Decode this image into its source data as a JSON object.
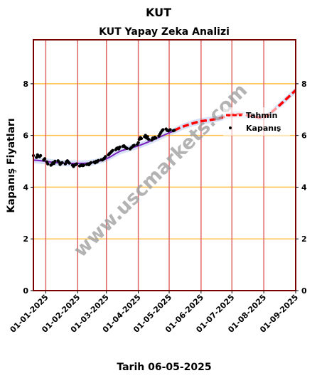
{
  "chart_data": {
    "type": "line",
    "suptitle": "KUT",
    "title": "KUT Yapay Zeka Analizi",
    "xlabel": "Tarih 06-05-2025",
    "ylabel": "Kapanış Fiyatları",
    "watermark": "www.uscmarkets.com",
    "ylim": [
      0,
      9.7
    ],
    "yticks": [
      0,
      2,
      4,
      6,
      8
    ],
    "ytick_labels": [
      "0",
      "2",
      "4",
      "6",
      "8"
    ],
    "xlim": [
      "2024-12-20",
      "2025-09-01"
    ],
    "xticks": [
      "2025-01-01",
      "2025-02-01",
      "2025-03-01",
      "2025-04-01",
      "2025-05-01",
      "2025-06-01",
      "2025-07-01",
      "2025-08-01",
      "2025-09-01"
    ],
    "xtick_labels": [
      "01-01-2025",
      "01-02-2025",
      "01-03-2025",
      "01-04-2025",
      "01-05-2025",
      "01-06-2025",
      "01-07-2025",
      "01-08-2025",
      "01-09-2025"
    ],
    "grid": true,
    "legend_position": "right",
    "colors": {
      "forecast": "#ff0000",
      "fit": "#7a1fbf",
      "band": "#b8c8f0",
      "close": "#000000",
      "frame": "#7a0000",
      "vgrid": "#e06666",
      "hgrid": "#ffc04d"
    },
    "series": [
      {
        "name": "Kapanış",
        "style": "scatter",
        "x": [
          "2024-12-20",
          "2024-12-23",
          "2024-12-24",
          "2024-12-25",
          "2024-12-26",
          "2024-12-27",
          "2024-12-30",
          "2024-12-31",
          "2025-01-02",
          "2025-01-03",
          "2025-01-06",
          "2025-01-07",
          "2025-01-08",
          "2025-01-09",
          "2025-01-10",
          "2025-01-13",
          "2025-01-14",
          "2025-01-15",
          "2025-01-16",
          "2025-01-17",
          "2025-01-20",
          "2025-01-21",
          "2025-01-22",
          "2025-01-23",
          "2025-01-24",
          "2025-01-27",
          "2025-01-28",
          "2025-01-29",
          "2025-01-30",
          "2025-01-31",
          "2025-02-03",
          "2025-02-04",
          "2025-02-05",
          "2025-02-06",
          "2025-02-07",
          "2025-02-10",
          "2025-02-11",
          "2025-02-12",
          "2025-02-13",
          "2025-02-14",
          "2025-02-17",
          "2025-02-18",
          "2025-02-19",
          "2025-02-20",
          "2025-02-21",
          "2025-02-24",
          "2025-02-25",
          "2025-02-26",
          "2025-02-27",
          "2025-02-28",
          "2025-03-03",
          "2025-03-04",
          "2025-03-05",
          "2025-03-06",
          "2025-03-07",
          "2025-03-10",
          "2025-03-11",
          "2025-03-12",
          "2025-03-13",
          "2025-03-14",
          "2025-03-17",
          "2025-03-18",
          "2025-03-19",
          "2025-03-20",
          "2025-03-21",
          "2025-03-24",
          "2025-03-25",
          "2025-03-26",
          "2025-03-27",
          "2025-03-28",
          "2025-03-31",
          "2025-04-01",
          "2025-04-02",
          "2025-04-03",
          "2025-04-04",
          "2025-04-07",
          "2025-04-08",
          "2025-04-09",
          "2025-04-10",
          "2025-04-11",
          "2025-04-14",
          "2025-04-15",
          "2025-04-16",
          "2025-04-17",
          "2025-04-18",
          "2025-04-21",
          "2025-04-22",
          "2025-04-23",
          "2025-04-24",
          "2025-04-25",
          "2025-04-28",
          "2025-04-29",
          "2025-04-30",
          "2025-05-01",
          "2025-05-02",
          "2025-05-05",
          "2025-05-06"
        ],
        "values": [
          5.22,
          5.15,
          5.25,
          5.2,
          5.18,
          5.22,
          5.05,
          5.1,
          4.98,
          4.9,
          4.85,
          4.88,
          4.95,
          4.92,
          5.0,
          5.02,
          4.96,
          4.88,
          4.93,
          4.95,
          4.9,
          4.98,
          5.02,
          4.97,
          4.93,
          4.85,
          4.8,
          4.85,
          4.87,
          4.9,
          4.82,
          4.84,
          4.86,
          4.83,
          4.85,
          4.88,
          4.9,
          4.87,
          4.92,
          4.95,
          4.97,
          4.94,
          5.0,
          4.98,
          5.03,
          5.06,
          5.05,
          5.08,
          5.12,
          5.18,
          5.25,
          5.3,
          5.33,
          5.38,
          5.42,
          5.45,
          5.5,
          5.52,
          5.48,
          5.55,
          5.58,
          5.6,
          5.56,
          5.52,
          5.5,
          5.48,
          5.52,
          5.55,
          5.6,
          5.62,
          5.65,
          5.72,
          5.85,
          5.92,
          5.88,
          5.95,
          6.0,
          5.9,
          5.95,
          5.85,
          5.82,
          5.9,
          5.88,
          5.93,
          5.9,
          5.98,
          6.05,
          6.12,
          6.18,
          6.22,
          6.25,
          6.2,
          6.18,
          6.2,
          6.22,
          6.18,
          6.2
        ]
      },
      {
        "name": "",
        "style": "line",
        "x": [
          "2024-12-20",
          "2025-01-01",
          "2025-01-10",
          "2025-01-20",
          "2025-02-01",
          "2025-02-15",
          "2025-03-01",
          "2025-03-15",
          "2025-04-01",
          "2025-04-15",
          "2025-05-01",
          "2025-05-06"
        ],
        "values": [
          5.05,
          5.0,
          4.95,
          4.93,
          4.92,
          4.95,
          5.1,
          5.4,
          5.6,
          5.82,
          6.1,
          6.18
        ]
      },
      {
        "name": "Tahmin",
        "style": "dashed",
        "x": [
          "2025-05-06",
          "2025-05-15",
          "2025-05-25",
          "2025-06-01",
          "2025-06-10",
          "2025-06-20",
          "2025-07-01",
          "2025-07-10",
          "2025-07-20",
          "2025-08-01",
          "2025-08-10",
          "2025-08-20",
          "2025-09-01"
        ],
        "values": [
          6.2,
          6.35,
          6.48,
          6.55,
          6.6,
          6.68,
          6.8,
          6.82,
          6.75,
          6.7,
          6.95,
          7.3,
          7.75
        ]
      }
    ]
  }
}
